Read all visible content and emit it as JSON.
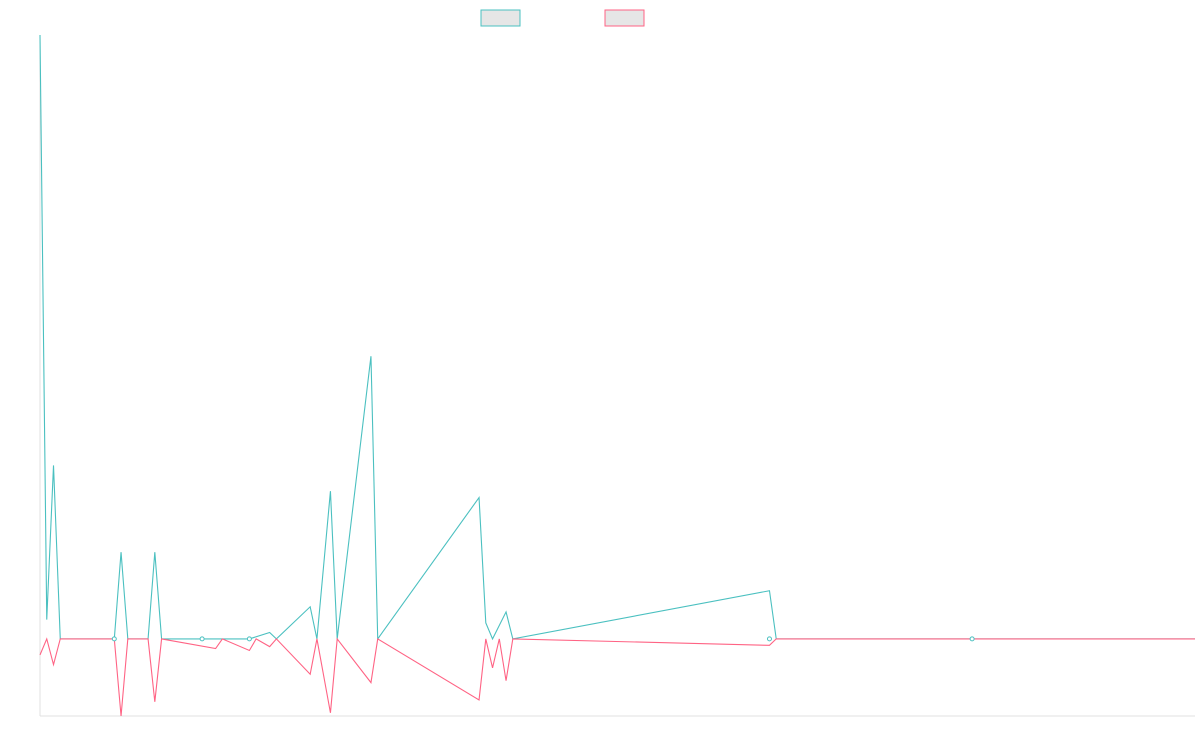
{
  "chart_data": {
    "type": "line",
    "title": "",
    "xlabel": "",
    "ylabel": "",
    "grid": false,
    "legend_position": "top-center",
    "x_count": 172,
    "baseline_value": 0,
    "ylim": [
      -120,
      940
    ],
    "series": [
      {
        "legend_text": "",
        "color": "#4bc0c0",
        "fill": "#e6e6e6",
        "points": [
          [
            0,
            940
          ],
          [
            1,
            30
          ],
          [
            2,
            270
          ],
          [
            3,
            0
          ],
          [
            11,
            0
          ],
          [
            12,
            135
          ],
          [
            13,
            0
          ],
          [
            16,
            0
          ],
          [
            17,
            135
          ],
          [
            18,
            0
          ],
          [
            24,
            0
          ],
          [
            26,
            0
          ],
          [
            31,
            0
          ],
          [
            34,
            10
          ],
          [
            35,
            0
          ],
          [
            40,
            50
          ],
          [
            41,
            0
          ],
          [
            43,
            230
          ],
          [
            44,
            0
          ],
          [
            49,
            440
          ],
          [
            50,
            0
          ],
          [
            65,
            220
          ],
          [
            66,
            25
          ],
          [
            67,
            0
          ],
          [
            69,
            42
          ],
          [
            70,
            0
          ],
          [
            108,
            75
          ],
          [
            109,
            0
          ],
          [
            171,
            0
          ]
        ]
      },
      {
        "legend_text": "",
        "color": "#ff6384",
        "fill": "#e6e6e6",
        "points": [
          [
            0,
            -25
          ],
          [
            1,
            0
          ],
          [
            2,
            -40
          ],
          [
            3,
            0
          ],
          [
            11,
            0
          ],
          [
            12,
            -120
          ],
          [
            13,
            0
          ],
          [
            16,
            0
          ],
          [
            17,
            -98
          ],
          [
            18,
            0
          ],
          [
            26,
            -15
          ],
          [
            27,
            0
          ],
          [
            31,
            -18
          ],
          [
            32,
            0
          ],
          [
            34,
            -12
          ],
          [
            35,
            0
          ],
          [
            40,
            -55
          ],
          [
            41,
            0
          ],
          [
            43,
            -115
          ],
          [
            44,
            0
          ],
          [
            49,
            -68
          ],
          [
            50,
            0
          ],
          [
            65,
            -95
          ],
          [
            66,
            0
          ],
          [
            67,
            -45
          ],
          [
            68,
            0
          ],
          [
            69,
            -65
          ],
          [
            70,
            0
          ],
          [
            108,
            -10
          ],
          [
            109,
            0
          ],
          [
            171,
            0
          ]
        ]
      }
    ]
  }
}
